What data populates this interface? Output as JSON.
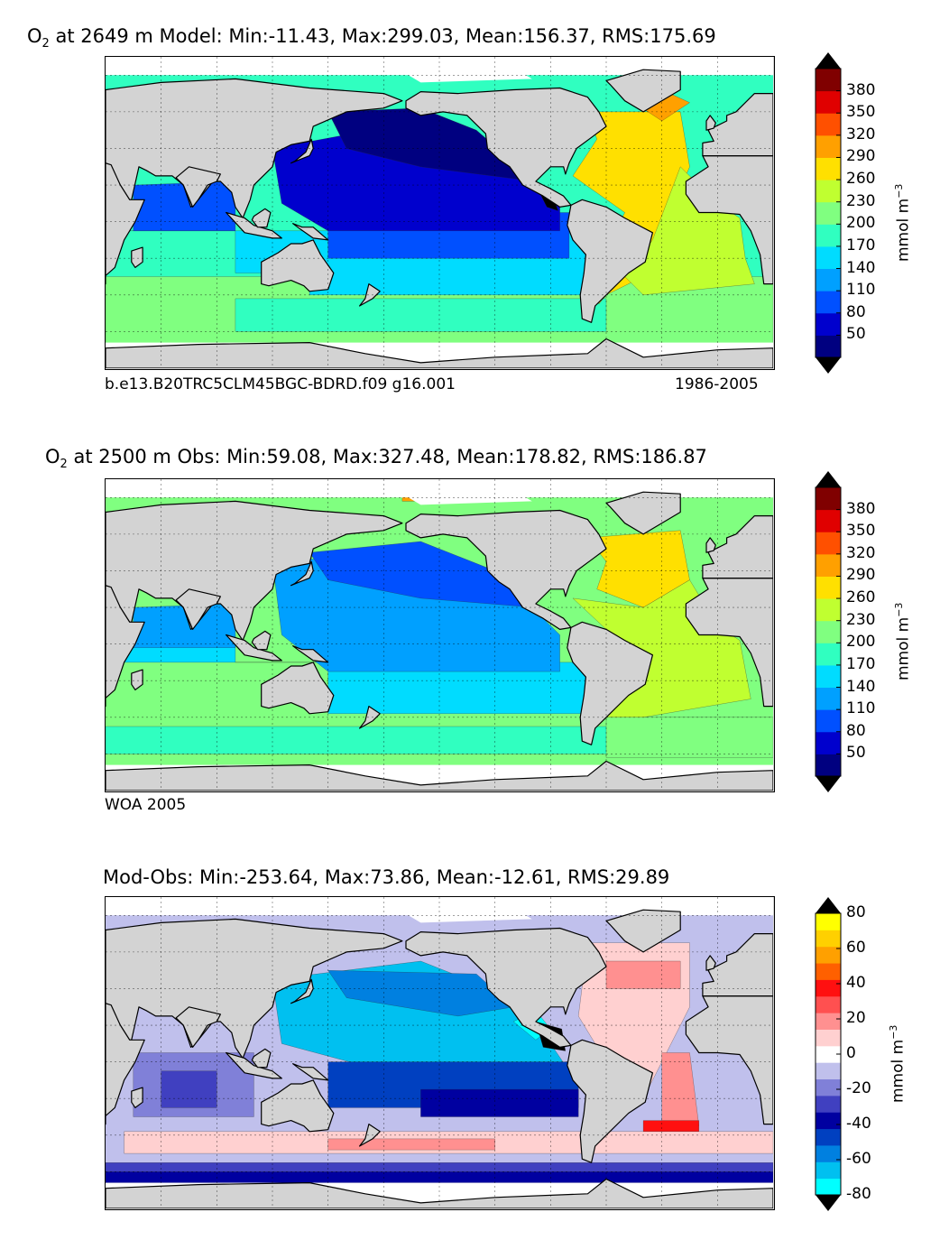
{
  "panels": [
    {
      "title_prefix": "O",
      "title_sub": "2",
      "title_rest": " at 2649 m Model: Min:-11.43, Max:299.03, Mean:156.37, RMS:175.69",
      "caption_left": "b.e13.B20TRC5CLM45BGC-BDRD.f09 g16.001",
      "caption_right": "1986-2005",
      "colorbar_unit": "mmol m",
      "colorbar_unit_sup": "−3"
    },
    {
      "title_prefix": "O",
      "title_sub": "2",
      "title_rest": " at 2500 m Obs: Min:59.08, Max:327.48, Mean:178.82, RMS:186.87",
      "caption_left": "WOA 2005",
      "caption_right": "",
      "colorbar_unit": "mmol m",
      "colorbar_unit_sup": "−3"
    },
    {
      "title_prefix": "Mod-Obs: Min:-253.64, Max:73.86, Mean:-12.61, RMS:29.89",
      "title_sub": "",
      "title_rest": "",
      "caption_left": "",
      "caption_right": "",
      "colorbar_unit": "mmol m",
      "colorbar_unit_sup": "−3"
    }
  ],
  "chart_data": [
    {
      "type": "heatmap",
      "variable": "O2",
      "depth_m": 2649,
      "stats": {
        "min": -11.43,
        "max": 299.03,
        "mean": 156.37,
        "rms": 175.69
      },
      "colorbar": {
        "ticks": [
          "380",
          "350",
          "320",
          "290",
          "260",
          "230",
          "200",
          "170",
          "140",
          "110",
          "80",
          "50"
        ],
        "bounds": [
          20,
          50,
          80,
          110,
          140,
          170,
          200,
          230,
          260,
          290,
          320,
          350,
          380,
          410
        ],
        "colors": [
          "#000080",
          "#0000cd",
          "#0050ff",
          "#00a0ff",
          "#00dcff",
          "#30ffc0",
          "#80ff80",
          "#c0ff30",
          "#ffe000",
          "#ffa000",
          "#ff5000",
          "#e00000",
          "#800000"
        ],
        "extend": "both",
        "orientation": "vertical"
      }
    },
    {
      "type": "heatmap",
      "variable": "O2",
      "depth_m": 2500,
      "stats": {
        "min": 59.08,
        "max": 327.48,
        "mean": 178.82,
        "rms": 186.87
      },
      "colorbar": {
        "ticks": [
          "380",
          "350",
          "320",
          "290",
          "260",
          "230",
          "200",
          "170",
          "140",
          "110",
          "80",
          "50"
        ],
        "bounds": [
          20,
          50,
          80,
          110,
          140,
          170,
          200,
          230,
          260,
          290,
          320,
          350,
          380,
          410
        ],
        "colors": [
          "#000080",
          "#0000cd",
          "#0050ff",
          "#00a0ff",
          "#00dcff",
          "#30ffc0",
          "#80ff80",
          "#c0ff30",
          "#ffe000",
          "#ffa000",
          "#ff5000",
          "#e00000",
          "#800000"
        ],
        "extend": "both",
        "orientation": "vertical"
      }
    },
    {
      "type": "heatmap",
      "variable": "O2 difference",
      "stats": {
        "min": -253.64,
        "max": 73.86,
        "mean": -12.61,
        "rms": 29.89
      },
      "colorbar": {
        "ticks": [
          "80",
          "60",
          "40",
          "20",
          "0",
          "-20",
          "-40",
          "-60",
          "-80"
        ],
        "bounds": [
          -80,
          -70,
          -60,
          -50,
          -40,
          -30,
          -20,
          -10,
          0,
          10,
          20,
          30,
          40,
          50,
          60,
          70,
          80
        ],
        "colors": [
          "#00ffff",
          "#00c0f0",
          "#0080e0",
          "#0040c0",
          "#0000a0",
          "#4040c0",
          "#8080d8",
          "#c0c0ec",
          "#ffffff",
          "#ffd0d0",
          "#ff9090",
          "#ff5050",
          "#ff1010",
          "#ff6000",
          "#ffa000",
          "#ffd000",
          "#ffff00"
        ],
        "extend": "both",
        "orientation": "vertical"
      }
    }
  ]
}
